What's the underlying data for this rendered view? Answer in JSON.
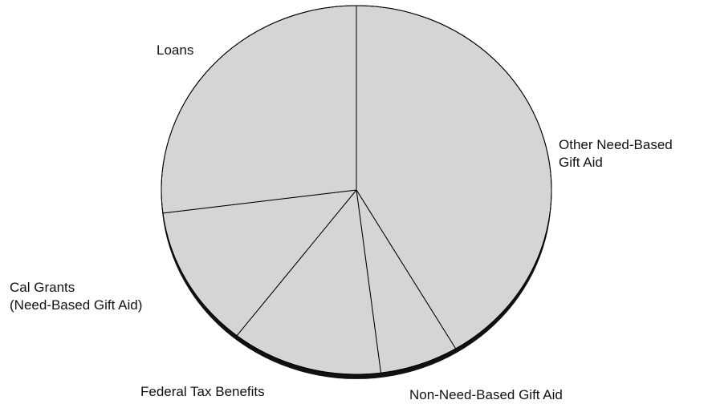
{
  "chart_data": {
    "type": "pie",
    "title": "",
    "style": "3d-tilted",
    "colors": {
      "slice_fill": "#d4d5d7",
      "slice_edge": "#000000",
      "depth_fill": "#111111",
      "background": "#ffffff"
    },
    "slices": [
      {
        "label_lines": [
          "Other Need-Based",
          "Gift Aid"
        ],
        "value": 41.5
      },
      {
        "label_lines": [
          "Non-Need-Based Gift Aid"
        ],
        "value": 6.5
      },
      {
        "label_lines": [
          "Federal Tax Benefits"
        ],
        "value": 12.5
      },
      {
        "label_lines": [
          "Cal Grants",
          "(Need-Based Gift Aid)"
        ],
        "value": 12.5
      },
      {
        "label_lines": [
          "Loans"
        ],
        "value": 27.0
      }
    ]
  }
}
